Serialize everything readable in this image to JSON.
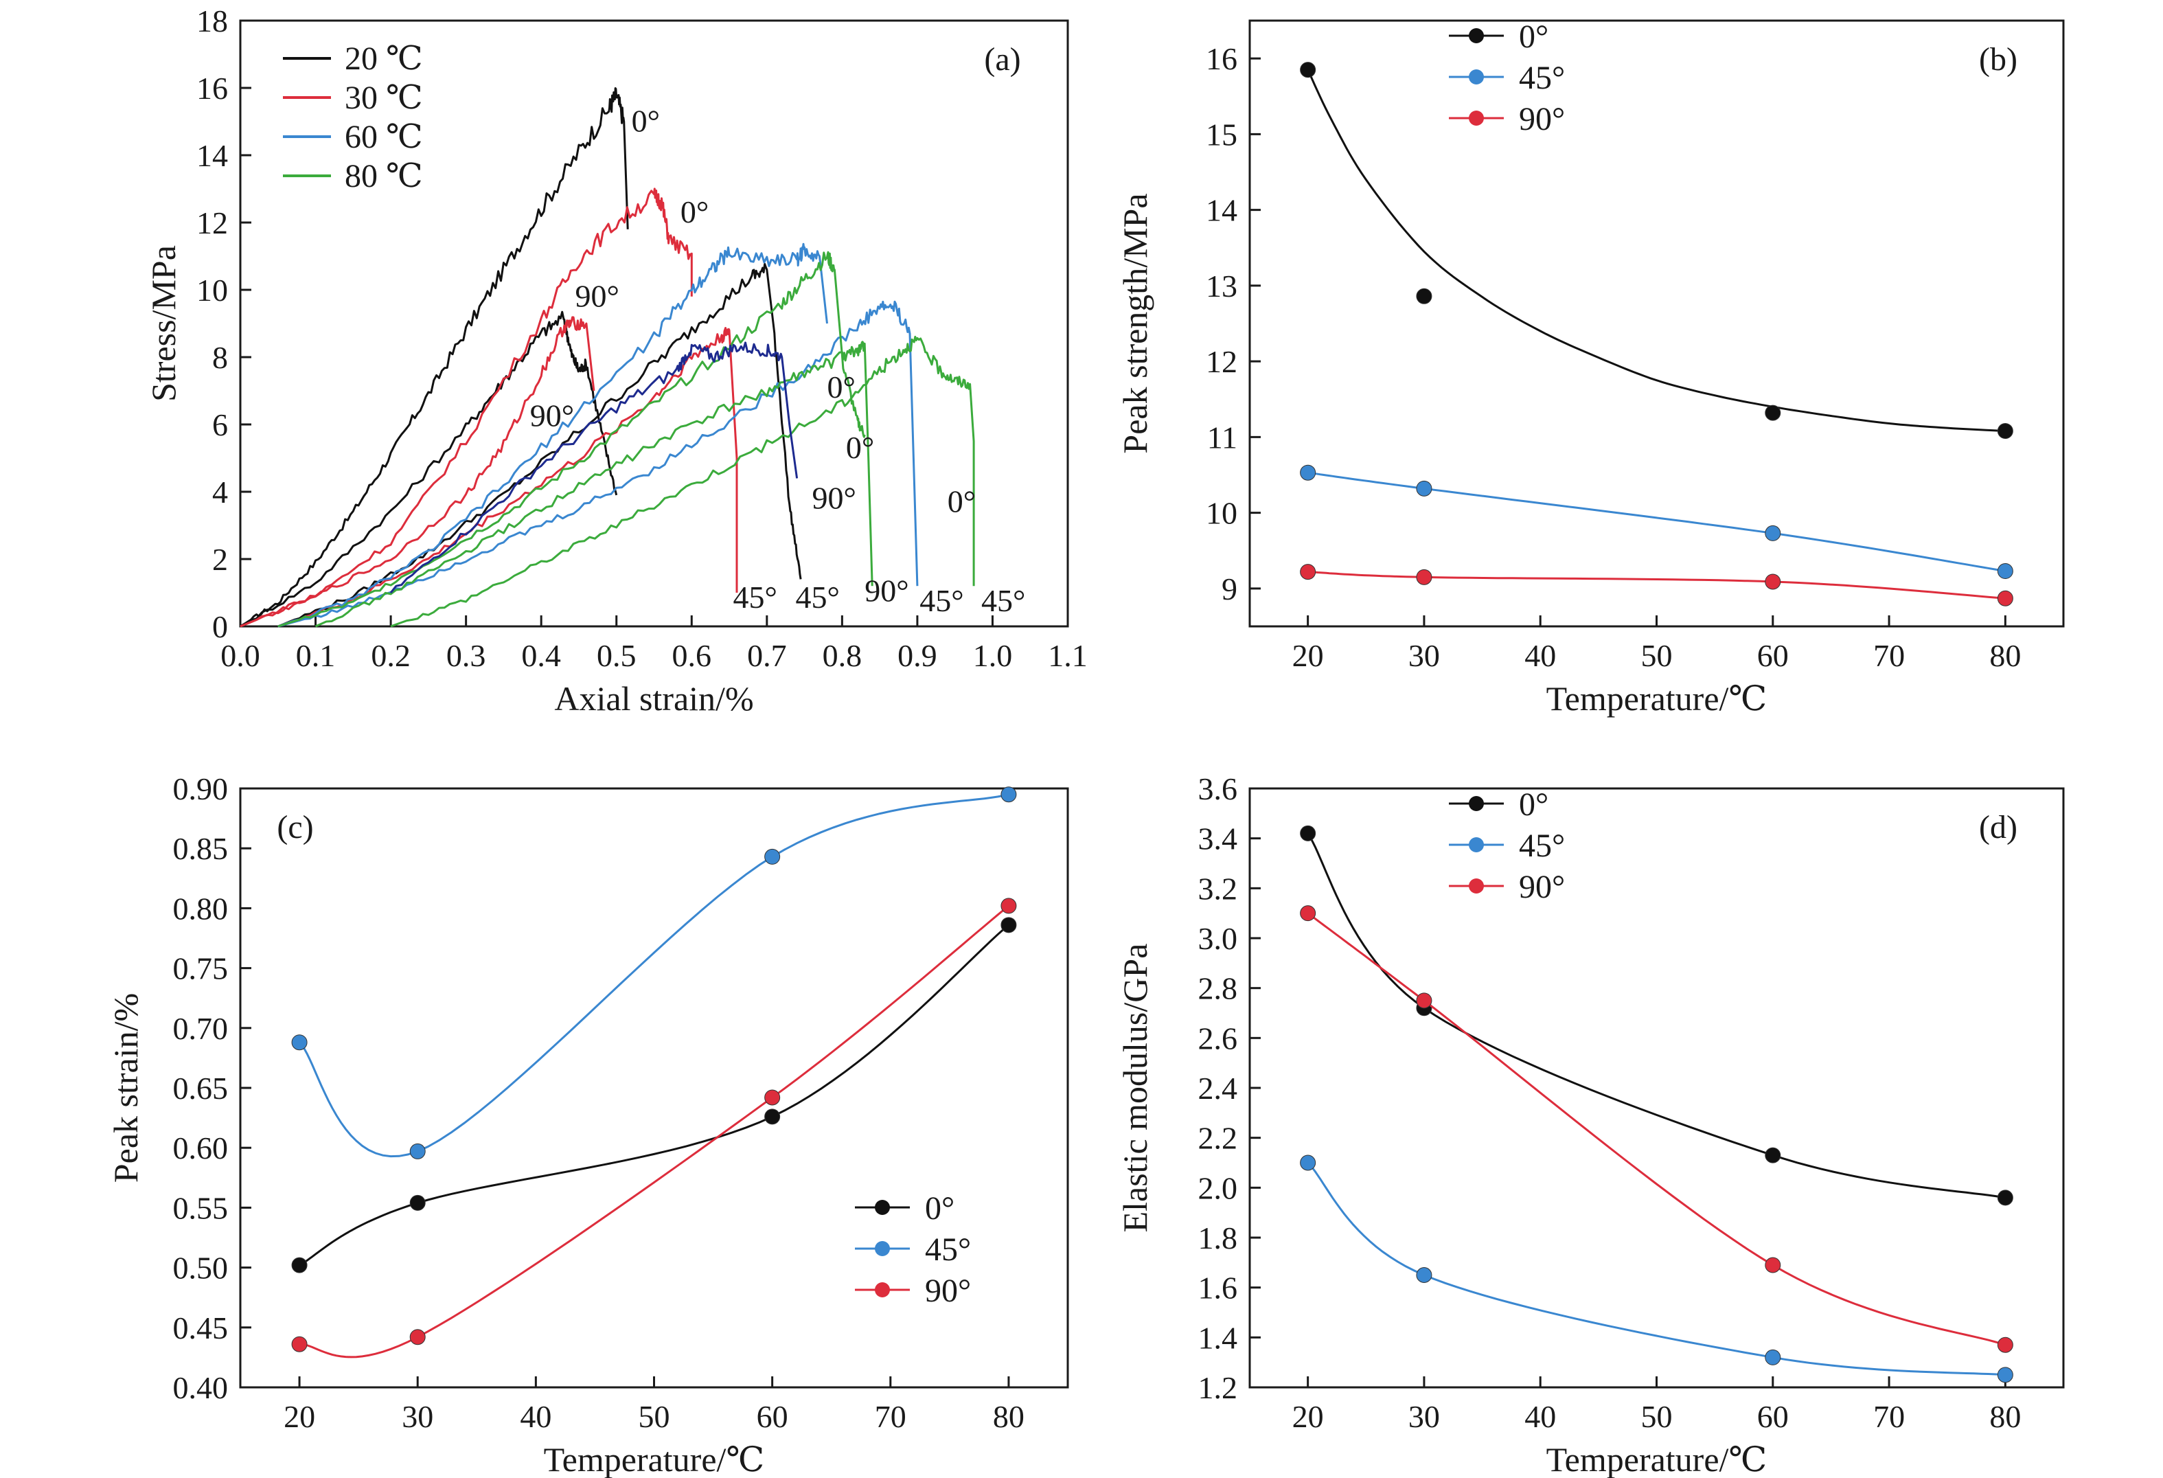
{
  "colors": {
    "black": "#111111",
    "red": "#dd2d3c",
    "blue": "#3a87d0",
    "green": "#3bab3c",
    "navy": "#1d2a8f"
  },
  "chart_data": [
    {
      "panel": "(a)",
      "type": "line",
      "xlabel": "Axial strain/%",
      "ylabel": "Stress/MPa",
      "xlim": [
        0.0,
        1.1
      ],
      "ylim": [
        0,
        18
      ],
      "x_ticks": [
        "0.0",
        "0.1",
        "0.2",
        "0.3",
        "0.4",
        "0.5",
        "0.6",
        "0.7",
        "0.8",
        "0.9",
        "1.0",
        "1.1"
      ],
      "y_ticks": [
        "0",
        "2",
        "4",
        "6",
        "8",
        "10",
        "12",
        "14",
        "16",
        "18"
      ],
      "grid": false,
      "legend_position": "top-left",
      "legend": [
        {
          "label": "20 ℃",
          "color": "#111111"
        },
        {
          "label": "30 ℃",
          "color": "#dd2d3c"
        },
        {
          "label": "60 ℃",
          "color": "#3a87d0"
        },
        {
          "label": "80 ℃",
          "color": "#3bab3c"
        }
      ],
      "series": [
        {
          "name": "20 ℃",
          "angle": "0°",
          "color": "#111111",
          "x": [
            0.0,
            0.05,
            0.1,
            0.15,
            0.2,
            0.25,
            0.3,
            0.35,
            0.4,
            0.45,
            0.49,
            0.5,
            0.51,
            0.515
          ],
          "y": [
            0.0,
            0.7,
            1.9,
            3.4,
            5.1,
            6.9,
            8.8,
            10.6,
            12.4,
            14.1,
            15.4,
            15.8,
            15.0,
            11.8
          ]
        },
        {
          "name": "20 ℃",
          "angle": "90°",
          "color": "#111111",
          "x": [
            0.0,
            0.1,
            0.2,
            0.3,
            0.35,
            0.4,
            0.43,
            0.44,
            0.45,
            0.46,
            0.48,
            0.5
          ],
          "y": [
            0.0,
            1.3,
            3.4,
            5.9,
            7.3,
            8.7,
            9.2,
            8.1,
            7.6,
            7.8,
            5.8,
            3.9
          ]
        },
        {
          "name": "20 ℃",
          "angle": "45°",
          "color": "#111111",
          "x": [
            0.05,
            0.15,
            0.25,
            0.35,
            0.45,
            0.55,
            0.62,
            0.68,
            0.7,
            0.71,
            0.73,
            0.745
          ],
          "y": [
            0.0,
            0.9,
            2.2,
            3.9,
            5.8,
            7.8,
            9.2,
            10.4,
            10.6,
            8.7,
            3.6,
            1.4
          ]
        },
        {
          "name": "30 ℃",
          "angle": "0°",
          "color": "#dd2d3c",
          "x": [
            0.0,
            0.1,
            0.2,
            0.3,
            0.4,
            0.45,
            0.5,
            0.55,
            0.56,
            0.57,
            0.6,
            0.6
          ],
          "y": [
            0.0,
            0.9,
            2.5,
            5.5,
            9.1,
            10.9,
            12.0,
            12.8,
            12.6,
            11.5,
            11.0,
            9.8
          ]
        },
        {
          "name": "30 ℃",
          "angle": "90°",
          "color": "#dd2d3c",
          "x": [
            0.0,
            0.1,
            0.2,
            0.3,
            0.35,
            0.4,
            0.43,
            0.44,
            0.46,
            0.47
          ],
          "y": [
            0.0,
            0.9,
            2.0,
            3.9,
            5.4,
            7.5,
            8.9,
            9.0,
            9.0,
            7.0
          ]
        },
        {
          "name": "30 ℃",
          "angle": "45°",
          "color": "#dd2d3c",
          "x": [
            0.05,
            0.15,
            0.25,
            0.35,
            0.45,
            0.55,
            0.6,
            0.64,
            0.65,
            0.66,
            0.66
          ],
          "y": [
            0.0,
            0.8,
            2.0,
            3.5,
            5.0,
            6.8,
            8.0,
            8.6,
            8.8,
            5.0,
            1.0
          ]
        },
        {
          "name": "60 ℃",
          "angle": "0°",
          "color": "#3a87d0",
          "x": [
            0.05,
            0.15,
            0.25,
            0.35,
            0.45,
            0.55,
            0.6,
            0.63,
            0.65,
            0.7,
            0.74,
            0.75,
            0.77,
            0.78
          ],
          "y": [
            0.0,
            0.8,
            2.2,
            4.2,
            6.4,
            8.6,
            10.0,
            10.7,
            11.1,
            10.9,
            10.9,
            11.2,
            11.0,
            9.0
          ]
        },
        {
          "name": "60 ℃",
          "angle": "45°",
          "color": "#3a87d0",
          "x": [
            0.05,
            0.15,
            0.25,
            0.35,
            0.45,
            0.55,
            0.65,
            0.75,
            0.82,
            0.85,
            0.87,
            0.89,
            0.895,
            0.9
          ],
          "y": [
            0.0,
            0.6,
            1.5,
            2.5,
            3.5,
            4.7,
            6.1,
            7.6,
            8.9,
            9.5,
            9.5,
            8.7,
            5.0,
            1.2
          ]
        },
        {
          "name": "80 ℃",
          "angle": "0°",
          "color": "#3bab3c",
          "x": [
            0.05,
            0.15,
            0.25,
            0.35,
            0.45,
            0.55,
            0.65,
            0.72,
            0.75,
            0.78,
            0.79,
            0.8,
            0.82,
            0.83
          ],
          "y": [
            0.0,
            0.7,
            1.9,
            3.3,
            4.9,
            6.6,
            8.3,
            9.6,
            10.3,
            11.0,
            10.6,
            7.9,
            6.1,
            5.7
          ]
        },
        {
          "name": "80 ℃",
          "angle": "90°",
          "color": "#3bab3c",
          "x": [
            0.1,
            0.2,
            0.3,
            0.4,
            0.5,
            0.6,
            0.7,
            0.75,
            0.8,
            0.82,
            0.83,
            0.835,
            0.84
          ],
          "y": [
            0.0,
            1.0,
            2.2,
            3.5,
            4.8,
            6.0,
            7.0,
            7.5,
            8.0,
            8.2,
            8.4,
            5.0,
            1.2
          ]
        },
        {
          "name": "80 ℃",
          "angle": "45°",
          "color": "#3bab3c",
          "x": [
            0.2,
            0.3,
            0.4,
            0.5,
            0.6,
            0.7,
            0.8,
            0.85,
            0.88,
            0.9,
            0.93,
            0.95,
            0.97,
            0.975,
            0.975
          ],
          "y": [
            0.0,
            0.8,
            1.9,
            3.0,
            4.2,
            5.4,
            6.6,
            7.6,
            8.2,
            8.5,
            7.6,
            7.3,
            7.2,
            5.5,
            1.2
          ]
        },
        {
          "name": "20 ℃",
          "angle": "",
          "color": "#1d2a8f",
          "x": [
            0.2,
            0.3,
            0.4,
            0.5,
            0.58,
            0.6,
            0.63,
            0.66,
            0.7,
            0.72,
            0.73,
            0.74
          ],
          "y": [
            1.0,
            2.8,
            4.8,
            6.5,
            7.6,
            8.3,
            8.0,
            8.3,
            8.2,
            8.0,
            6.0,
            4.4
          ]
        }
      ],
      "annotations": [
        {
          "text": "0°",
          "x": 0.52,
          "y": 14.7
        },
        {
          "text": "0°",
          "x": 0.585,
          "y": 12.0
        },
        {
          "text": "90°",
          "x": 0.445,
          "y": 9.5
        },
        {
          "text": "90°",
          "x": 0.385,
          "y": 5.95
        },
        {
          "text": "0°",
          "x": 0.78,
          "y": 6.8
        },
        {
          "text": "0°",
          "x": 0.805,
          "y": 5.0
        },
        {
          "text": "90°",
          "x": 0.76,
          "y": 3.5
        },
        {
          "text": "0°",
          "x": 0.94,
          "y": 3.4
        },
        {
          "text": "45°",
          "x": 0.655,
          "y": 0.55
        },
        {
          "text": "45°",
          "x": 0.738,
          "y": 0.55
        },
        {
          "text": "90°",
          "x": 0.83,
          "y": 0.75
        },
        {
          "text": "45°",
          "x": 0.903,
          "y": 0.45
        },
        {
          "text": "45°",
          "x": 0.985,
          "y": 0.45
        }
      ]
    },
    {
      "panel": "(b)",
      "type": "line",
      "xlabel": "Temperature/℃",
      "ylabel": "Peak strength/MPa",
      "xlim": [
        15,
        85
      ],
      "ylim": [
        8.5,
        16.5
      ],
      "x_ticks": [
        "20",
        "30",
        "40",
        "50",
        "60",
        "70",
        "80"
      ],
      "y_ticks": [
        "9",
        "10",
        "11",
        "12",
        "13",
        "14",
        "15",
        "16"
      ],
      "grid": false,
      "legend_position": "top-left",
      "categories": [
        20,
        30,
        60,
        80
      ],
      "series": [
        {
          "name": "0°",
          "color": "#111111",
          "values": [
            15.85,
            12.86,
            11.32,
            11.08
          ],
          "fit": {
            "x": [
              20,
              22,
              25,
              30,
              35,
              40,
              45,
              50,
              55,
              60,
              65,
              70,
              75,
              80
            ],
            "y": [
              15.85,
              15.2,
              14.4,
              13.45,
              12.85,
              12.4,
              12.05,
              11.75,
              11.55,
              11.4,
              11.28,
              11.18,
              11.12,
              11.08
            ]
          }
        },
        {
          "name": "45°",
          "color": "#3a87d0",
          "values": [
            10.53,
            10.32,
            9.73,
            9.23
          ]
        },
        {
          "name": "90°",
          "color": "#dd2d3c",
          "values": [
            9.22,
            9.15,
            9.09,
            8.87
          ]
        }
      ]
    },
    {
      "panel": "(c)",
      "type": "line",
      "xlabel": "Temperature/℃",
      "ylabel": "Peak strain/%",
      "xlim": [
        15,
        85
      ],
      "ylim": [
        0.4,
        0.9
      ],
      "x_ticks": [
        "20",
        "30",
        "40",
        "50",
        "60",
        "70",
        "80"
      ],
      "y_ticks": [
        "0.40",
        "0.45",
        "0.50",
        "0.55",
        "0.60",
        "0.65",
        "0.70",
        "0.75",
        "0.80",
        "0.85",
        "0.90"
      ],
      "grid": false,
      "legend_position": "bottom-right",
      "categories": [
        20,
        30,
        60,
        80
      ],
      "series": [
        {
          "name": "0°",
          "color": "#111111",
          "values": [
            0.502,
            0.554,
            0.626,
            0.786
          ]
        },
        {
          "name": "45°",
          "color": "#3a87d0",
          "values": [
            0.688,
            0.597,
            0.843,
            0.895
          ]
        },
        {
          "name": "90°",
          "color": "#dd2d3c",
          "values": [
            0.436,
            0.442,
            0.642,
            0.802
          ]
        }
      ]
    },
    {
      "panel": "(d)",
      "type": "line",
      "xlabel": "Temperature/℃",
      "ylabel": "Elastic modulus/GPa",
      "xlim": [
        15,
        85
      ],
      "ylim": [
        1.2,
        3.6
      ],
      "x_ticks": [
        "20",
        "30",
        "40",
        "50",
        "60",
        "70",
        "80"
      ],
      "y_ticks": [
        "1.2",
        "1.4",
        "1.6",
        "1.8",
        "2.0",
        "2.2",
        "2.4",
        "2.6",
        "2.8",
        "3.0",
        "3.2",
        "3.4",
        "3.6"
      ],
      "grid": false,
      "legend_position": "top-left",
      "categories": [
        20,
        30,
        60,
        80
      ],
      "series": [
        {
          "name": "0°",
          "color": "#111111",
          "values": [
            3.42,
            2.72,
            2.13,
            1.96
          ]
        },
        {
          "name": "45°",
          "color": "#3a87d0",
          "values": [
            2.1,
            1.65,
            1.32,
            1.25
          ]
        },
        {
          "name": "90°",
          "color": "#dd2d3c",
          "values": [
            3.1,
            2.75,
            1.69,
            1.37
          ]
        }
      ]
    }
  ]
}
